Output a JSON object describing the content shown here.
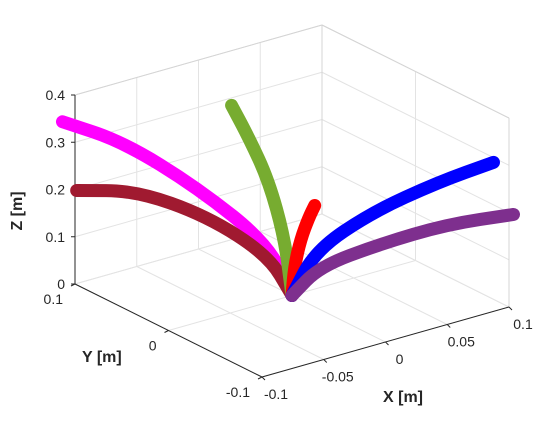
{
  "chart_data": {
    "type": "line3d",
    "title": "",
    "xlabel": "X [m]",
    "ylabel": "Y [m]",
    "zlabel": "Z [m]",
    "xlim": [
      -0.1,
      0.1
    ],
    "ylim": [
      -0.1,
      0.1
    ],
    "zlim": [
      0,
      0.4
    ],
    "xticks": [
      -0.1,
      -0.05,
      0,
      0.05,
      0.1
    ],
    "xtick_labels": [
      "-0.1",
      "-0.05",
      "0",
      "0.05",
      "0.1"
    ],
    "yticks": [
      -0.1,
      0,
      0.1
    ],
    "ytick_labels": [
      "-0.1",
      "0",
      "0.1"
    ],
    "zticks": [
      0,
      0.1,
      0.2,
      0.3,
      0.4
    ],
    "ztick_labels": [
      "0",
      "0.1",
      "0.2",
      "0.3",
      "0.4"
    ],
    "grid": true,
    "box": true,
    "series": [
      {
        "color": "#ff00ff",
        "x": [
          0,
          -0.008,
          -0.035,
          -0.065,
          -0.095
        ],
        "y": [
          0,
          0.015,
          0.055,
          0.095,
          0.12
        ],
        "z": [
          0,
          0.1,
          0.2,
          0.28,
          0.32
        ]
      },
      {
        "color": "#a01a30",
        "x": [
          0,
          -0.01,
          -0.035,
          -0.07,
          -0.11
        ],
        "y": [
          0,
          0.012,
          0.045,
          0.075,
          0.085
        ],
        "z": [
          0,
          0.08,
          0.15,
          0.2,
          0.22
        ]
      },
      {
        "color": "#77ac30",
        "x": [
          0,
          -0.003,
          -0.01,
          -0.02,
          -0.03
        ],
        "y": [
          0,
          0.004,
          0.012,
          0.02,
          0.025
        ],
        "z": [
          0,
          0.12,
          0.24,
          0.33,
          0.4
        ]
      },
      {
        "color": "#ff0000",
        "x": [
          0,
          0.002,
          0.004,
          0.006,
          0.007
        ],
        "y": [
          0,
          0.0,
          -0.004,
          -0.01,
          -0.015
        ],
        "z": [
          0,
          0.06,
          0.12,
          0.17,
          0.2
        ]
      },
      {
        "color": "#0000ff",
        "x": [
          0,
          0.01,
          0.035,
          0.065,
          0.095
        ],
        "y": [
          0,
          -0.012,
          -0.04,
          -0.07,
          -0.09
        ],
        "z": [
          0,
          0.1,
          0.19,
          0.26,
          0.3
        ]
      },
      {
        "color": "#7e2f8e",
        "x": [
          0,
          0.015,
          0.045,
          0.08,
          0.115
        ],
        "y": [
          0,
          -0.01,
          -0.035,
          -0.06,
          -0.085
        ],
        "z": [
          0,
          0.06,
          0.11,
          0.15,
          0.17
        ]
      }
    ]
  }
}
